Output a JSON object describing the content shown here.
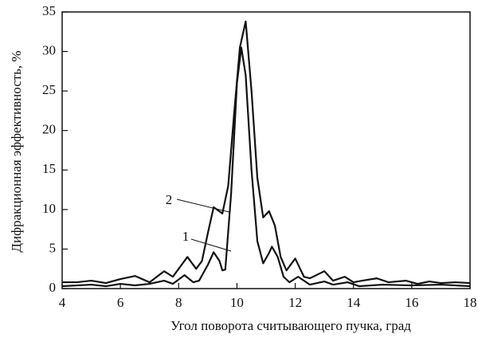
{
  "chart_data": {
    "type": "line",
    "xlabel": "Угол поворота считывающего пучка, град",
    "ylabel": "Дифракционная эффективность, %",
    "xlim": [
      4,
      18
    ],
    "xticks": [
      4,
      6,
      8,
      10,
      12,
      14,
      16,
      18
    ],
    "ylim": [
      0,
      35
    ],
    "yticks": [
      0,
      5,
      10,
      15,
      20,
      25,
      30,
      35
    ],
    "series": [
      {
        "name": "1",
        "color": "#111111",
        "x": [
          4,
          5,
          5.5,
          6,
          6.5,
          7,
          7.5,
          7.8,
          8.2,
          8.5,
          8.7,
          9,
          9.2,
          9.4,
          9.5,
          9.6,
          9.8,
          10,
          10.15,
          10.3,
          10.5,
          10.7,
          10.9,
          11.1,
          11.2,
          11.4,
          11.6,
          11.8,
          12.1,
          12.5,
          13,
          13.3,
          13.8,
          14.2,
          15,
          16,
          17,
          18
        ],
        "values": [
          0.3,
          0.5,
          0.3,
          0.6,
          0.4,
          0.6,
          1.0,
          0.6,
          1.7,
          0.8,
          1.0,
          3,
          4.6,
          3.5,
          2.3,
          2.4,
          12,
          26,
          30.5,
          27,
          15,
          6,
          3.2,
          4.5,
          5.3,
          4,
          1.5,
          0.8,
          1.5,
          0.5,
          0.9,
          0.5,
          0.8,
          0.3,
          0.5,
          0.4,
          0.5,
          0.3
        ]
      },
      {
        "name": "2",
        "color": "#111111",
        "x": [
          4,
          4.5,
          5,
          5.5,
          6,
          6.5,
          7,
          7.5,
          7.8,
          8,
          8.3,
          8.6,
          8.8,
          9,
          9.2,
          9.5,
          9.7,
          9.9,
          10.1,
          10.3,
          10.5,
          10.7,
          10.9,
          11.1,
          11.3,
          11.5,
          11.7,
          12,
          12.3,
          12.5,
          13,
          13.3,
          13.7,
          14,
          14.3,
          14.8,
          15.2,
          15.8,
          16.2,
          16.6,
          17,
          17.5,
          18
        ],
        "values": [
          0.8,
          0.8,
          1.0,
          0.7,
          1.2,
          1.6,
          0.8,
          2.2,
          1.5,
          2.5,
          4.0,
          2.5,
          3.5,
          7,
          10.3,
          9.5,
          13,
          22,
          30.5,
          33.8,
          25,
          14,
          9,
          9.8,
          8,
          4,
          2.3,
          3.8,
          1.5,
          1.3,
          2.2,
          1.0,
          1.5,
          0.8,
          1.0,
          1.3,
          0.8,
          1.0,
          0.6,
          0.9,
          0.7,
          0.8,
          0.7
        ]
      }
    ]
  }
}
